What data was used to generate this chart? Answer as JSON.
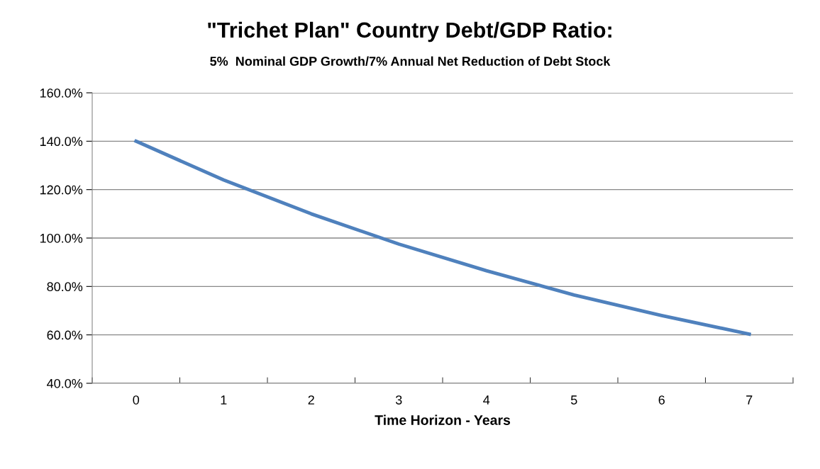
{
  "chart_data": {
    "type": "line",
    "title": "\"Trichet Plan\" Country Debt/GDP Ratio:",
    "subtitle": "5%  Nominal GDP Growth/7% Annual Net Reduction of Debt Stock",
    "xlabel": "Time Horizon - Years",
    "categories": [
      "0",
      "1",
      "2",
      "3",
      "4",
      "5",
      "6",
      "7"
    ],
    "series": [
      {
        "color": "#4f81bd",
        "values": [
          140,
          124,
          110,
          97.5,
          86.5,
          76.5,
          68,
          60.3
        ]
      }
    ],
    "ylim": [
      40,
      160
    ],
    "yticks": [
      {
        "value": 40,
        "label": "40.0%"
      },
      {
        "value": 60,
        "label": "60.0%"
      },
      {
        "value": 80,
        "label": "80.0%"
      },
      {
        "value": 100,
        "label": "100.0%"
      },
      {
        "value": 120,
        "label": "120.0%"
      },
      {
        "value": 140,
        "label": "140.0%"
      },
      {
        "value": 160,
        "label": "160.0%"
      }
    ],
    "grid": "y",
    "legend": false,
    "marker": "none",
    "line_style": "solid"
  }
}
